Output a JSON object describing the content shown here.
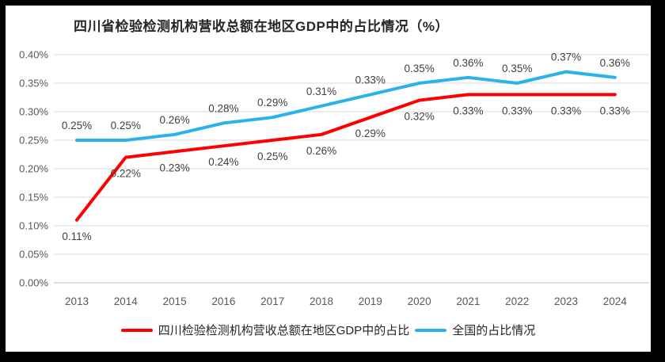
{
  "chart_data": {
    "type": "line",
    "title": "四川省检验检测机构营收总额在地区GDP中的占比情况（%）",
    "categories": [
      "2013",
      "2014",
      "2015",
      "2016",
      "2017",
      "2018",
      "2019",
      "2020",
      "2021",
      "2022",
      "2023",
      "2024"
    ],
    "series": [
      {
        "name": "四川检验检测机构营收总额在地区GDP中的占比",
        "color": "#fe0000",
        "values": [
          0.11,
          0.22,
          0.23,
          0.24,
          0.25,
          0.26,
          0.29,
          0.32,
          0.33,
          0.33,
          0.33,
          0.33
        ],
        "labels": [
          "0.11%",
          "0.22%",
          "0.23%",
          "0.24%",
          "0.25%",
          "0.26%",
          "0.29%",
          "0.32%",
          "0.33%",
          "0.33%",
          "0.33%",
          "0.33%"
        ],
        "label_position": "below"
      },
      {
        "name": "全国的占比情况",
        "color": "#2bb3e8",
        "values": [
          0.25,
          0.25,
          0.26,
          0.28,
          0.29,
          0.31,
          0.33,
          0.35,
          0.36,
          0.35,
          0.37,
          0.36
        ],
        "labels": [
          "0.25%",
          "0.25%",
          "0.26%",
          "0.28%",
          "0.29%",
          "0.31%",
          "0.33%",
          "0.35%",
          "0.36%",
          "0.35%",
          "0.37%",
          "0.36%"
        ],
        "label_position": "above"
      }
    ],
    "y_axis": {
      "min": 0,
      "max": 0.4,
      "step": 0.05,
      "tick_labels": [
        "0.00%",
        "0.05%",
        "0.10%",
        "0.15%",
        "0.20%",
        "0.25%",
        "0.30%",
        "0.35%",
        "0.40%"
      ]
    },
    "x_axis": {
      "label": ""
    },
    "grid": true,
    "legend_position": "bottom",
    "colors": {
      "gridline": "#d9d9d9",
      "axis_line": "#bfbfbf",
      "tick_label": "#595959",
      "data_label": "#404040",
      "title": "#262626",
      "frame": "#000000",
      "background": "#ffffff"
    }
  }
}
